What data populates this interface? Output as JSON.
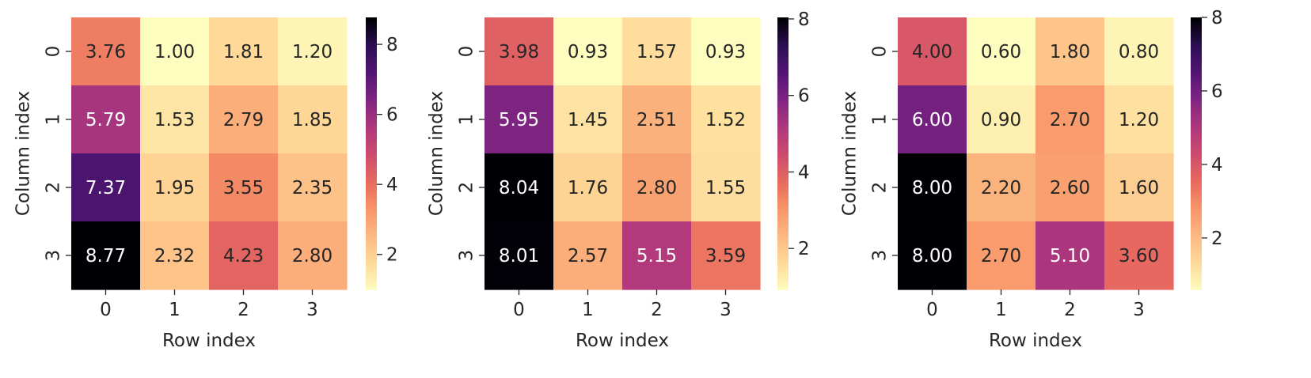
{
  "chart_data": [
    {
      "type": "heatmap",
      "title": "",
      "xlabel": "Row index",
      "ylabel": "Column index",
      "x_ticklabels": [
        "0",
        "1",
        "2",
        "3"
      ],
      "y_ticklabels": [
        "0",
        "1",
        "2",
        "3"
      ],
      "values": [
        [
          3.76,
          1.0,
          1.81,
          1.2
        ],
        [
          5.79,
          1.53,
          2.79,
          1.85
        ],
        [
          7.37,
          1.95,
          3.55,
          2.35
        ],
        [
          8.77,
          2.32,
          4.23,
          2.8
        ]
      ],
      "value_labels": [
        [
          "3.76",
          "1.00",
          "1.81",
          "1.20"
        ],
        [
          "5.79",
          "1.53",
          "2.79",
          "1.85"
        ],
        [
          "7.37",
          "1.95",
          "3.55",
          "2.35"
        ],
        [
          "8.77",
          "2.32",
          "4.23",
          "2.80"
        ]
      ],
      "colormap": "magma_r",
      "vmin": 1.0,
      "vmax": 8.77,
      "colorbar_ticks": [
        2,
        4,
        6,
        8
      ],
      "colorbar_ticklabels": [
        "2",
        "4",
        "6",
        "8"
      ]
    },
    {
      "type": "heatmap",
      "title": "",
      "xlabel": "Row index",
      "ylabel": "Column index",
      "x_ticklabels": [
        "0",
        "1",
        "2",
        "3"
      ],
      "y_ticklabels": [
        "0",
        "1",
        "2",
        "3"
      ],
      "values": [
        [
          3.98,
          0.93,
          1.57,
          0.93
        ],
        [
          5.95,
          1.45,
          2.51,
          1.52
        ],
        [
          8.04,
          1.76,
          2.8,
          1.55
        ],
        [
          8.01,
          2.57,
          5.15,
          3.59
        ]
      ],
      "value_labels": [
        [
          "3.98",
          "0.93",
          "1.57",
          "0.93"
        ],
        [
          "5.95",
          "1.45",
          "2.51",
          "1.52"
        ],
        [
          "8.04",
          "1.76",
          "2.80",
          "1.55"
        ],
        [
          "8.01",
          "2.57",
          "5.15",
          "3.59"
        ]
      ],
      "colormap": "magma_r",
      "vmin": 0.93,
      "vmax": 8.04,
      "colorbar_ticks": [
        2,
        4,
        6,
        8
      ],
      "colorbar_ticklabels": [
        "2",
        "4",
        "6",
        "8"
      ]
    },
    {
      "type": "heatmap",
      "title": "",
      "xlabel": "Row index",
      "ylabel": "Column index",
      "x_ticklabels": [
        "0",
        "1",
        "2",
        "3"
      ],
      "y_ticklabels": [
        "0",
        "1",
        "2",
        "3"
      ],
      "values": [
        [
          4.0,
          0.6,
          1.8,
          0.8
        ],
        [
          6.0,
          0.9,
          2.7,
          1.2
        ],
        [
          8.0,
          2.2,
          2.6,
          1.6
        ],
        [
          8.0,
          2.7,
          5.1,
          3.6
        ]
      ],
      "value_labels": [
        [
          "4.00",
          "0.60",
          "1.80",
          "0.80"
        ],
        [
          "6.00",
          "0.90",
          "2.70",
          "1.20"
        ],
        [
          "8.00",
          "2.20",
          "2.60",
          "1.60"
        ],
        [
          "8.00",
          "2.70",
          "5.10",
          "3.60"
        ]
      ],
      "colormap": "magma_r",
      "vmin": 0.6,
      "vmax": 8.0,
      "colorbar_ticks": [
        2,
        4,
        6,
        8
      ],
      "colorbar_ticklabels": [
        "2",
        "4",
        "6",
        "8"
      ]
    }
  ]
}
